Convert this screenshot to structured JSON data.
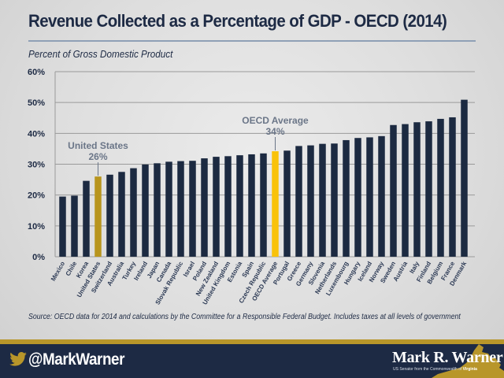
{
  "header": {
    "title": "Revenue Collected as a Percentage of GDP - OECD (2014)",
    "subtitle": "Percent of Gross Domestic Product"
  },
  "colors": {
    "bar_default": "#1c2a41",
    "bar_us": "#b8951e",
    "bar_oecd": "#f9c20a",
    "annotation": "#6b7688",
    "gridline": "#9a9a9a",
    "accent_gold": "#b8962a",
    "navy": "#1d2a44"
  },
  "chart_data": {
    "type": "bar",
    "title": "Revenue Collected as a Percentage of GDP - OECD (2014)",
    "subtitle": "Percent of Gross Domestic Product",
    "xlabel": "",
    "ylabel": "Percent of Gross Domestic Product",
    "ylim": [
      0,
      60
    ],
    "yticks": [
      0,
      10,
      20,
      30,
      40,
      50,
      60
    ],
    "ytick_labels": [
      "0%",
      "10%",
      "20%",
      "30%",
      "40%",
      "50%",
      "60%"
    ],
    "grid": true,
    "legend": "none",
    "categories": [
      "Mexico",
      "Chile",
      "Korea",
      "United States",
      "Switzerland",
      "Australia",
      "Turkey",
      "Ireland",
      "Japan",
      "Canada",
      "Slovak Republic",
      "Israel",
      "Poland",
      "New Zealand",
      "United Kingdom",
      "Estonia",
      "Spain",
      "Czech Republic",
      "OECD Average",
      "Portugal",
      "Greece",
      "Germany",
      "Slovenia",
      "Netherlands",
      "Luxembourg",
      "Hungary",
      "Iceland",
      "Norway",
      "Sweden",
      "Austria",
      "Italy",
      "Finland",
      "Belgium",
      "France",
      "Denmark"
    ],
    "values": [
      19.5,
      19.8,
      24.6,
      26.0,
      26.6,
      27.5,
      28.7,
      29.9,
      30.3,
      30.8,
      31.0,
      31.1,
      31.9,
      32.4,
      32.6,
      32.9,
      33.2,
      33.5,
      34.2,
      34.4,
      35.9,
      36.1,
      36.6,
      36.7,
      37.8,
      38.5,
      38.7,
      39.1,
      42.7,
      43.0,
      43.6,
      43.9,
      44.7,
      45.2,
      50.9
    ],
    "highlights": [
      {
        "category": "United States",
        "color_key": "bar_us",
        "label": "United States",
        "value_label": "26%"
      },
      {
        "category": "OECD Average",
        "color_key": "bar_oecd",
        "label": "OECD Average",
        "value_label": "34%"
      }
    ]
  },
  "source": "Source: OECD data for 2014 and calculations by the Committee for a Responsible Federal Budget. Includes taxes at all levels of government",
  "footer": {
    "twitter_icon": "twitter-bird-icon",
    "handle": "@MarkWarner",
    "brand_name": "Mark R. Warner",
    "brand_sub_prefix": "US Senator from the Commonwealth of ",
    "brand_sub_state": "Virginia",
    "state_icon": "virginia-map-icon"
  }
}
